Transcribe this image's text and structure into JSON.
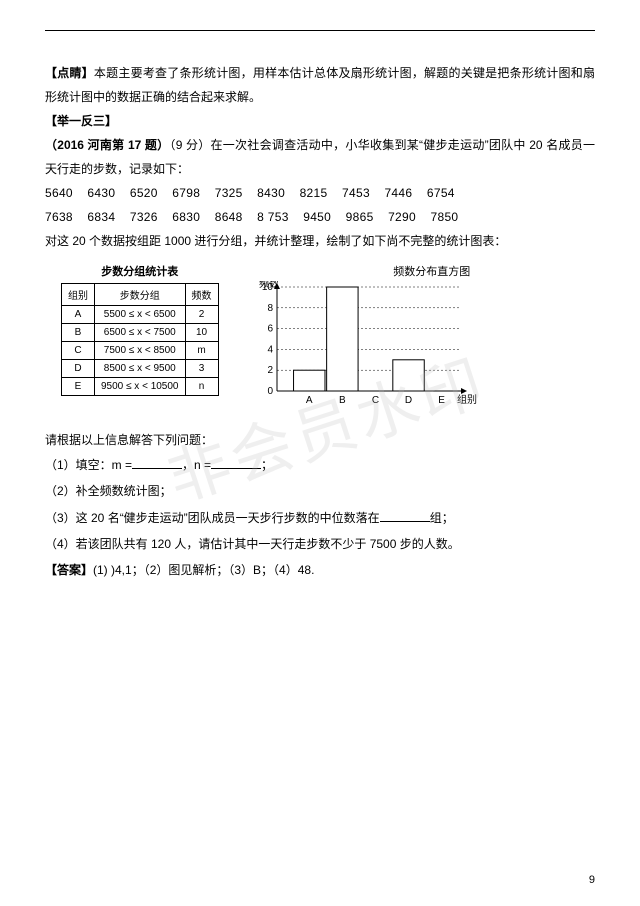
{
  "hint": {
    "label": "【点睛】",
    "text": "本题主要考查了条形统计图，用样本估计总体及扇形统计图，解题的关键是把条形统计图和扇形统计图中的数据正确的结合起来求解。"
  },
  "variant": {
    "label": "【举一反三】"
  },
  "problem": {
    "source": "（2016 河南第 17 题）",
    "points": "（9 分）",
    "text": "在一次社会调查活动中，小华收集到某“健步走运动”团队中 20 名成员一天行走的步数，记录如下："
  },
  "data_rows": [
    "5640    6430    6520    6798    7325    8430    8215    7453    7446    6754",
    "7638    6834    7326    6830    8648    8 753    9450    9865    7290    7850"
  ],
  "grouping_text": "对这 20 个数据按组距 1000 进行分组，并统计整理，绘制了如下尚不完整的统计图表：",
  "table": {
    "title": "步数分组统计表",
    "headers": [
      "组别",
      "步数分组",
      "频数"
    ],
    "rows": [
      [
        "A",
        "5500 ≤ x < 6500",
        "2"
      ],
      [
        "B",
        "6500 ≤ x < 7500",
        "10"
      ],
      [
        "C",
        "7500 ≤ x < 8500",
        "m"
      ],
      [
        "D",
        "8500 ≤ x < 9500",
        "3"
      ],
      [
        "E",
        "9500 ≤ x < 10500",
        "n"
      ]
    ]
  },
  "chart": {
    "title": "频数分布直方图",
    "ylabel": "频数",
    "xlabel": "组别",
    "categories": [
      "A",
      "B",
      "C",
      "D",
      "E"
    ],
    "values": [
      2,
      10,
      null,
      3,
      null
    ],
    "ylim": [
      0,
      10
    ],
    "ytick_step": 2,
    "bar_fill": "#ffffff",
    "bar_stroke": "#000000",
    "grid_color": "#000000",
    "axis_color": "#000000",
    "bar_width": 0.95,
    "background": "#ffffff",
    "fontsize_axis": 10,
    "fontsize_title": 11
  },
  "prompt": "请根据以上信息解答下列问题：",
  "questions": {
    "q1_pre": "（1）填空：m =",
    "q1_mid": "，n =",
    "q1_post": "；",
    "q2": "（2）补全频数统计图；",
    "q3_pre": "（3）这 20 名“健步走运动”团队成员一天步行步数的中位数落在",
    "q3_post": "组；",
    "q4": "（4）若该团队共有 120 人，请估计其中一天行走步数不少于 7500 步的人数。"
  },
  "answer": {
    "label": "【答案】",
    "text": "(1) )4,1；（2）图见解析；（3）B；（4）48."
  },
  "page_number": "9",
  "watermark": "非会员水印"
}
